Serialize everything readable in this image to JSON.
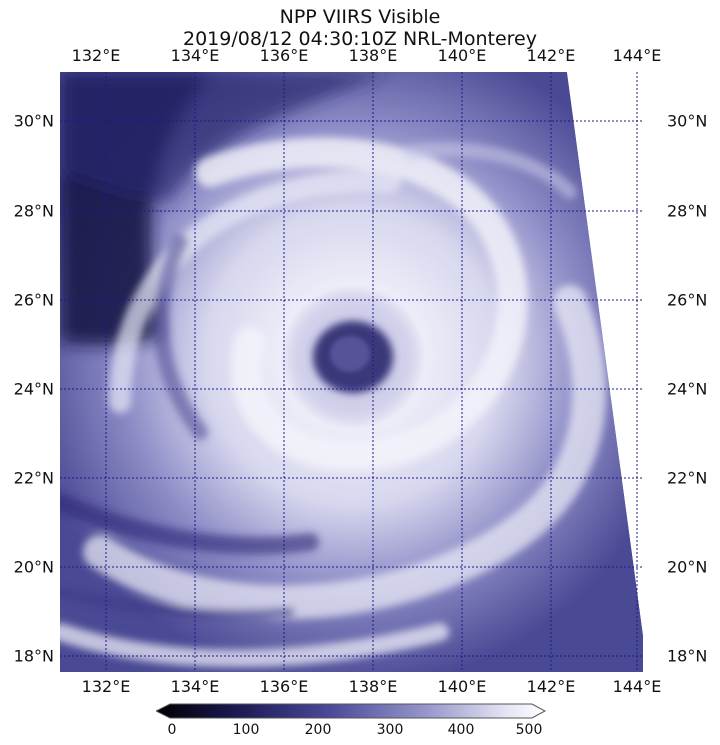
{
  "title": {
    "line1": "NPP VIIRS Visible",
    "line2": "2019/08/12 04:30:10Z NRL-Monterey"
  },
  "map": {
    "longitude_labels": [
      "132°E",
      "134°E",
      "136°E",
      "138°E",
      "140°E",
      "142°E",
      "144°E"
    ],
    "latitude_labels": [
      "30°N",
      "28°N",
      "26°N",
      "24°N",
      "22°N",
      "20°N",
      "18°N"
    ],
    "lon_range": [
      131,
      144.2
    ],
    "lat_range": [
      17.6,
      31.1
    ],
    "features": [
      "typhoon-eye",
      "spiral-cloud-bands",
      "swath-edge"
    ],
    "grid_color": "#1a1a8c"
  },
  "colorbar": {
    "tick_labels": [
      "0",
      "100",
      "200",
      "300",
      "400",
      "500"
    ],
    "min": 0,
    "max": 500,
    "colors": [
      "#000000",
      "#1a1850",
      "#4c4a9a",
      "#9898cc",
      "#e4e4f4",
      "#ffffff"
    ]
  }
}
